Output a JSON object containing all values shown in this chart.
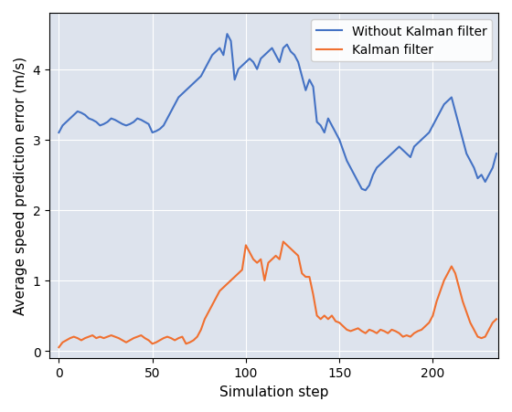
{
  "title": "",
  "xlabel": "Simulation step",
  "ylabel": "Average speed prediction error (m/s)",
  "background_color": "#dde3ed",
  "line1_color": "#4472c4",
  "line1_label": "Without Kalman filter",
  "line2_color": "#f07030",
  "line2_label": "Kalman filter",
  "xlim": [
    -5,
    235
  ],
  "ylim": [
    -0.1,
    4.8
  ],
  "xticks": [
    0,
    50,
    100,
    150,
    200
  ],
  "yticks": [
    0,
    1,
    2,
    3,
    4
  ],
  "blue_x": [
    0,
    2,
    4,
    6,
    8,
    10,
    12,
    14,
    16,
    18,
    20,
    22,
    24,
    26,
    28,
    30,
    32,
    34,
    36,
    38,
    40,
    42,
    44,
    46,
    48,
    50,
    52,
    54,
    56,
    58,
    60,
    62,
    64,
    66,
    68,
    70,
    72,
    74,
    76,
    78,
    80,
    82,
    84,
    86,
    88,
    90,
    92,
    94,
    96,
    98,
    100,
    102,
    104,
    106,
    108,
    110,
    112,
    114,
    116,
    118,
    120,
    122,
    124,
    126,
    128,
    130,
    132,
    134,
    136,
    138,
    140,
    142,
    144,
    146,
    148,
    150,
    152,
    154,
    156,
    158,
    160,
    162,
    164,
    166,
    168,
    170,
    172,
    174,
    176,
    178,
    180,
    182,
    184,
    186,
    188,
    190,
    192,
    194,
    196,
    198,
    200,
    202,
    204,
    206,
    208,
    210,
    212,
    214,
    216,
    218,
    220,
    222,
    224,
    226,
    228,
    230,
    232,
    234
  ],
  "blue_y": [
    3.1,
    3.2,
    3.25,
    3.3,
    3.35,
    3.4,
    3.38,
    3.35,
    3.3,
    3.28,
    3.25,
    3.2,
    3.22,
    3.25,
    3.3,
    3.28,
    3.25,
    3.22,
    3.2,
    3.22,
    3.25,
    3.3,
    3.28,
    3.25,
    3.22,
    3.1,
    3.12,
    3.15,
    3.2,
    3.3,
    3.4,
    3.5,
    3.6,
    3.65,
    3.7,
    3.75,
    3.8,
    3.85,
    3.9,
    4.0,
    4.1,
    4.2,
    4.25,
    4.3,
    4.2,
    4.5,
    4.4,
    3.85,
    4.0,
    4.05,
    4.1,
    4.15,
    4.1,
    4.0,
    4.15,
    4.2,
    4.25,
    4.3,
    4.2,
    4.1,
    4.3,
    4.35,
    4.25,
    4.2,
    4.1,
    3.9,
    3.7,
    3.85,
    3.75,
    3.25,
    3.2,
    3.1,
    3.3,
    3.2,
    3.1,
    3.0,
    2.85,
    2.7,
    2.6,
    2.5,
    2.4,
    2.3,
    2.28,
    2.35,
    2.5,
    2.6,
    2.65,
    2.7,
    2.75,
    2.8,
    2.85,
    2.9,
    2.85,
    2.8,
    2.75,
    2.9,
    2.95,
    3.0,
    3.05,
    3.1,
    3.2,
    3.3,
    3.4,
    3.5,
    3.55,
    3.6,
    3.4,
    3.2,
    3.0,
    2.8,
    2.7,
    2.6,
    2.45,
    2.5,
    2.4,
    2.5,
    2.6,
    2.8
  ],
  "orange_x": [
    0,
    2,
    4,
    6,
    8,
    10,
    12,
    14,
    16,
    18,
    20,
    22,
    24,
    26,
    28,
    30,
    32,
    34,
    36,
    38,
    40,
    42,
    44,
    46,
    48,
    50,
    52,
    54,
    56,
    58,
    60,
    62,
    64,
    66,
    68,
    70,
    72,
    74,
    76,
    78,
    80,
    82,
    84,
    86,
    88,
    90,
    92,
    94,
    96,
    98,
    100,
    102,
    104,
    106,
    108,
    110,
    112,
    114,
    116,
    118,
    120,
    122,
    124,
    126,
    128,
    130,
    132,
    134,
    136,
    138,
    140,
    142,
    144,
    146,
    148,
    150,
    152,
    154,
    156,
    158,
    160,
    162,
    164,
    166,
    168,
    170,
    172,
    174,
    176,
    178,
    180,
    182,
    184,
    186,
    188,
    190,
    192,
    194,
    196,
    198,
    200,
    202,
    204,
    206,
    208,
    210,
    212,
    214,
    216,
    218,
    220,
    222,
    224,
    226,
    228,
    230,
    232,
    234
  ],
  "orange_y": [
    0.05,
    0.12,
    0.15,
    0.18,
    0.2,
    0.18,
    0.15,
    0.18,
    0.2,
    0.22,
    0.18,
    0.2,
    0.18,
    0.2,
    0.22,
    0.2,
    0.18,
    0.15,
    0.12,
    0.15,
    0.18,
    0.2,
    0.22,
    0.18,
    0.15,
    0.1,
    0.12,
    0.15,
    0.18,
    0.2,
    0.18,
    0.15,
    0.18,
    0.2,
    0.1,
    0.12,
    0.15,
    0.2,
    0.3,
    0.45,
    0.55,
    0.65,
    0.75,
    0.85,
    0.9,
    0.95,
    1.0,
    1.05,
    1.1,
    1.15,
    1.5,
    1.4,
    1.3,
    1.25,
    1.3,
    1.0,
    1.25,
    1.3,
    1.35,
    1.3,
    1.55,
    1.5,
    1.45,
    1.4,
    1.35,
    1.1,
    1.05,
    1.05,
    0.8,
    0.5,
    0.45,
    0.5,
    0.45,
    0.5,
    0.42,
    0.4,
    0.35,
    0.3,
    0.28,
    0.3,
    0.32,
    0.28,
    0.25,
    0.3,
    0.28,
    0.25,
    0.3,
    0.28,
    0.25,
    0.3,
    0.28,
    0.25,
    0.2,
    0.22,
    0.2,
    0.25,
    0.28,
    0.3,
    0.35,
    0.4,
    0.5,
    0.7,
    0.85,
    1.0,
    1.1,
    1.2,
    1.1,
    0.9,
    0.7,
    0.55,
    0.4,
    0.3,
    0.2,
    0.18,
    0.2,
    0.3,
    0.4,
    0.45
  ]
}
